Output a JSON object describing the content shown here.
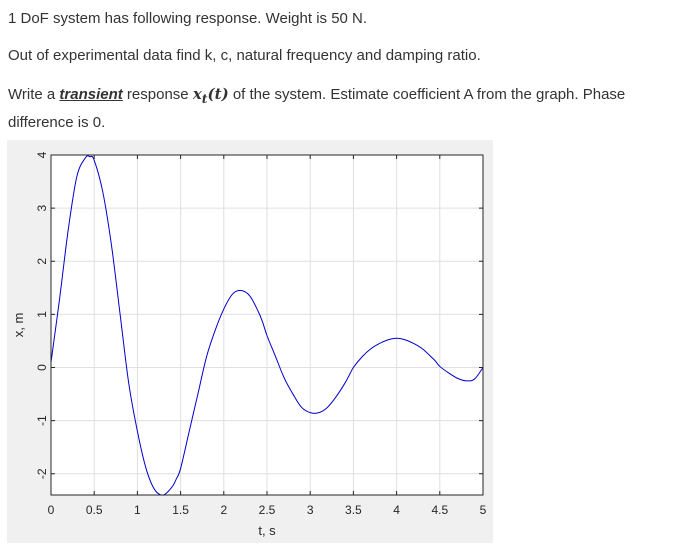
{
  "question": {
    "line1": "1 DoF system has following response. Weight is 50 N.",
    "line2": "Out of experimental data find k, c, natural frequency and damping ratio.",
    "line3_a": "Write a ",
    "line3_emph": "transient",
    "line3_b": " response ",
    "line3_math": "x",
    "line3_math_sub": "t",
    "line3_math_paren": "(t)",
    "line3_c": " of the system. Estimate coefficient A from the graph. Phase difference is 0."
  },
  "chart_data": {
    "type": "line",
    "xlabel": "t, s",
    "ylabel": "x, m",
    "xlim": [
      0,
      5
    ],
    "ylim": [
      -2.4,
      4
    ],
    "xticks": [
      "0",
      "0.5",
      "1",
      "1.5",
      "2",
      "2.5",
      "3",
      "3.5",
      "4",
      "4.5",
      "5"
    ],
    "yticks": [
      "4",
      "3",
      "2",
      "1",
      "0",
      "-1",
      "-2"
    ],
    "grid": true,
    "line_color": "#0000cc",
    "series": [
      {
        "x": [
          0,
          0.1,
          0.2,
          0.3,
          0.4,
          0.45,
          0.5,
          0.6,
          0.7,
          0.8,
          0.9,
          1.0,
          1.1,
          1.2,
          1.3,
          1.4,
          1.45,
          1.5,
          1.6,
          1.7,
          1.8,
          1.9,
          2.0,
          2.1,
          2.2,
          2.3,
          2.4,
          2.45,
          2.5,
          2.6,
          2.7,
          2.8,
          2.9,
          3.0,
          3.1,
          3.2,
          3.3,
          3.4,
          3.45,
          3.5,
          3.6,
          3.7,
          3.8,
          3.9,
          4.0,
          4.1,
          4.2,
          4.3,
          4.4,
          4.45,
          4.5,
          4.6,
          4.7,
          4.8,
          4.9,
          5.0
        ],
        "y": [
          0.1,
          1.3,
          2.6,
          3.6,
          3.95,
          3.97,
          3.9,
          3.3,
          2.3,
          1.0,
          -0.3,
          -1.2,
          -1.9,
          -2.3,
          -2.4,
          -2.25,
          -2.1,
          -1.9,
          -1.2,
          -0.5,
          0.2,
          0.7,
          1.1,
          1.38,
          1.45,
          1.35,
          1.05,
          0.85,
          0.6,
          0.2,
          -0.2,
          -0.5,
          -0.75,
          -0.85,
          -0.85,
          -0.75,
          -0.55,
          -0.3,
          -0.15,
          0.0,
          0.2,
          0.35,
          0.45,
          0.52,
          0.55,
          0.52,
          0.45,
          0.35,
          0.2,
          0.12,
          0.02,
          -0.1,
          -0.2,
          -0.25,
          -0.22,
          0.0
        ]
      }
    ]
  }
}
